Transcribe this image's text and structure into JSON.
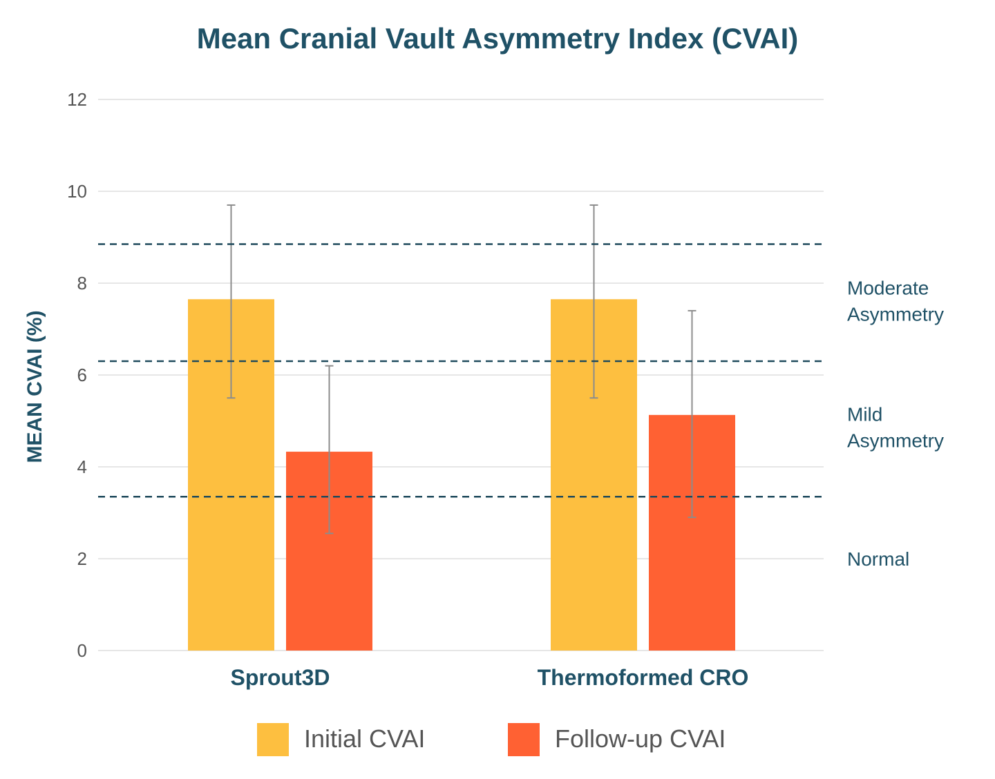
{
  "chart_data": {
    "type": "bar",
    "title": "Mean Cranial Vault Asymmetry Index (CVAI)",
    "xlabel": "",
    "ylabel": "MEAN CVAI (%)",
    "ylim": [
      0,
      12
    ],
    "yticks": [
      0,
      2,
      4,
      6,
      8,
      10,
      12
    ],
    "grid": true,
    "legend_position": "bottom",
    "categories": [
      "Sprout3D",
      "Thermoformed CRO"
    ],
    "series": [
      {
        "name": "Initial CVAI",
        "color": "#FDBF40",
        "values": [
          7.65,
          7.65
        ],
        "error_low": [
          5.5,
          5.5
        ],
        "error_high": [
          9.7,
          9.7
        ]
      },
      {
        "name": "Follow-up CVAI",
        "color": "#FF6133",
        "values": [
          4.33,
          5.13
        ],
        "error_low": [
          2.55,
          2.9
        ],
        "error_high": [
          6.2,
          7.4
        ]
      }
    ],
    "reference_lines": [
      8.85,
      6.3,
      3.35
    ],
    "zones": [
      {
        "line1": "Moderate",
        "line2": "Asymmetry",
        "y": 7.6
      },
      {
        "line1": "Mild",
        "line2": "Asymmetry",
        "y": 4.85
      },
      {
        "line1": "Normal",
        "line2": "",
        "y": 2.0
      }
    ],
    "colors": {
      "title": "#1F5166",
      "axis_label": "#1F5166",
      "grid": "#E6E6E6",
      "error_bar": "#8C8C8C",
      "reference_line": "#1F4A5C",
      "tick": "#555555"
    }
  }
}
